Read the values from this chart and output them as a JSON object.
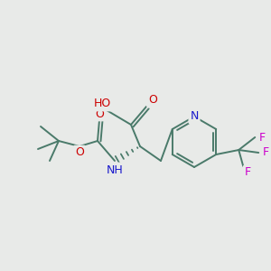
{
  "background_color": "#e8eae8",
  "bond_color": "#4a7a6a",
  "bond_width": 1.4,
  "figsize": [
    3.0,
    3.0
  ],
  "dpi": 100,
  "atom_colors": {
    "O": "#cc0000",
    "N": "#1a1acc",
    "F": "#cc00cc",
    "C": "#4a7a6a"
  },
  "font_size": 9.0
}
